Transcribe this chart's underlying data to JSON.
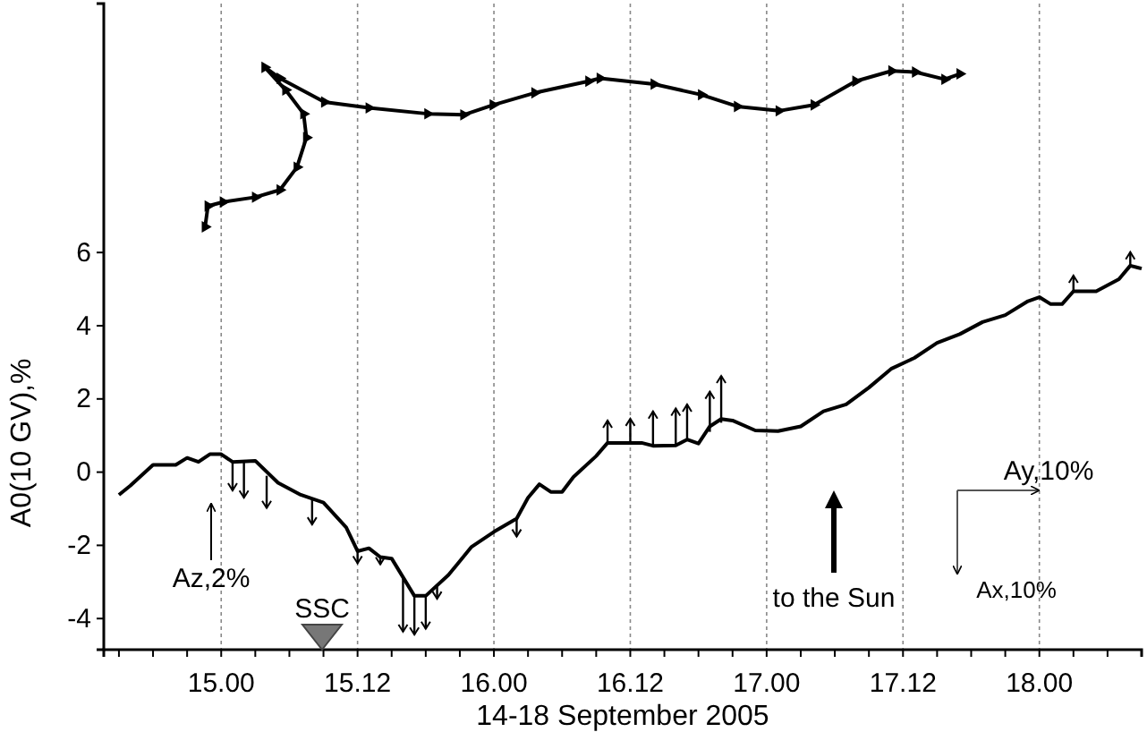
{
  "chart_data": {
    "type": "line",
    "xlabel": "14-18 September 2005",
    "ylabel": "A0(10 GV),%",
    "xlim": [
      "2005-09-14T13:40",
      "2005-09-18T09:00"
    ],
    "ylim": [
      -4.85,
      12.8
    ],
    "xticks": [
      {
        "value": "2005-09-14T15:00",
        "label": null
      },
      {
        "value": "2005-09-14T18:00",
        "label": null
      },
      {
        "value": "2005-09-14T21:00",
        "label": null
      },
      {
        "value": "2005-09-15T00:00",
        "label": "15.00"
      },
      {
        "value": "2005-09-15T03:00",
        "label": null
      },
      {
        "value": "2005-09-15T06:00",
        "label": null
      },
      {
        "value": "2005-09-15T09:00",
        "label": null
      },
      {
        "value": "2005-09-15T12:00",
        "label": "15.12"
      },
      {
        "value": "2005-09-15T15:00",
        "label": null
      },
      {
        "value": "2005-09-15T18:00",
        "label": null
      },
      {
        "value": "2005-09-15T21:00",
        "label": null
      },
      {
        "value": "2005-09-16T00:00",
        "label": "16.00"
      },
      {
        "value": "2005-09-16T03:00",
        "label": null
      },
      {
        "value": "2005-09-16T06:00",
        "label": null
      },
      {
        "value": "2005-09-16T09:00",
        "label": null
      },
      {
        "value": "2005-09-16T12:00",
        "label": "16.12"
      },
      {
        "value": "2005-09-16T15:00",
        "label": null
      },
      {
        "value": "2005-09-16T18:00",
        "label": null
      },
      {
        "value": "2005-09-16T21:00",
        "label": null
      },
      {
        "value": "2005-09-17T00:00",
        "label": "17.00"
      },
      {
        "value": "2005-09-17T03:00",
        "label": null
      },
      {
        "value": "2005-09-17T06:00",
        "label": null
      },
      {
        "value": "2005-09-17T09:00",
        "label": null
      },
      {
        "value": "2005-09-17T12:00",
        "label": "17.12"
      },
      {
        "value": "2005-09-17T15:00",
        "label": null
      },
      {
        "value": "2005-09-17T18:00",
        "label": null
      },
      {
        "value": "2005-09-17T21:00",
        "label": null
      },
      {
        "value": "2005-09-18T00:00",
        "label": "18.00"
      },
      {
        "value": "2005-09-18T03:00",
        "label": null
      },
      {
        "value": "2005-09-18T06:00",
        "label": null
      }
    ],
    "yticks": [
      -4,
      -2,
      0,
      2,
      4,
      6
    ],
    "grid": "x",
    "line_style": "solid",
    "series": [
      {
        "color": "#000000",
        "x": [
          "2005-09-14T15:00",
          "2005-09-14T16:00",
          "2005-09-14T18:00",
          "2005-09-14T20:00",
          "2005-09-14T21:00",
          "2005-09-14T22:00",
          "2005-09-14T23:00",
          "2005-09-15T00:00",
          "2005-09-15T01:00",
          "2005-09-15T03:00",
          "2005-09-15T05:00",
          "2005-09-15T07:00",
          "2005-09-15T09:00",
          "2005-09-15T11:00",
          "2005-09-15T12:00",
          "2005-09-15T13:00",
          "2005-09-15T14:00",
          "2005-09-15T15:00",
          "2005-09-15T17:00",
          "2005-09-15T18:00",
          "2005-09-15T20:00",
          "2005-09-15T22:00",
          "2005-09-16T00:00",
          "2005-09-16T02:00",
          "2005-09-16T03:00",
          "2005-09-16T04:00",
          "2005-09-16T05:00",
          "2005-09-16T06:00",
          "2005-09-16T07:00",
          "2005-09-16T09:00",
          "2005-09-16T10:00",
          "2005-09-16T13:00",
          "2005-09-16T14:00",
          "2005-09-16T16:00",
          "2005-09-16T17:00",
          "2005-09-16T18:00",
          "2005-09-16T19:00",
          "2005-09-16T20:00",
          "2005-09-16T21:00",
          "2005-09-16T23:00",
          "2005-09-17T01:00",
          "2005-09-17T03:00",
          "2005-09-17T05:00",
          "2005-09-17T07:00",
          "2005-09-17T09:00",
          "2005-09-17T11:00",
          "2005-09-17T13:00",
          "2005-09-17T15:00",
          "2005-09-17T17:00",
          "2005-09-17T19:00",
          "2005-09-17T21:00",
          "2005-09-17T23:00",
          "2005-09-18T00:00",
          "2005-09-18T01:00",
          "2005-09-18T02:00",
          "2005-09-18T03:00",
          "2005-09-18T05:00",
          "2005-09-18T07:00",
          "2005-09-18T08:00",
          "2005-09-18T09:00"
        ],
        "values": [
          -0.62,
          -0.37,
          0.2,
          0.2,
          0.39,
          0.28,
          0.49,
          0.49,
          0.28,
          0.31,
          -0.29,
          -0.62,
          -0.83,
          -1.51,
          -2.16,
          -2.08,
          -2.32,
          -2.36,
          -3.38,
          -3.38,
          -2.81,
          -2.05,
          -1.63,
          -1.27,
          -0.7,
          -0.33,
          -0.54,
          -0.54,
          -0.13,
          0.44,
          0.8,
          0.8,
          0.72,
          0.73,
          0.89,
          0.78,
          1.25,
          1.45,
          1.41,
          1.14,
          1.12,
          1.25,
          1.66,
          1.85,
          2.31,
          2.83,
          3.12,
          3.53,
          3.77,
          4.1,
          4.29,
          4.67,
          4.78,
          4.59,
          4.59,
          4.94,
          4.94,
          5.27,
          5.64,
          5.56
        ]
      },
      {
        "type": "bar",
        "color": "#000000",
        "x": [
          "2005-09-15T01:00",
          "2005-09-15T02:00",
          "2005-09-15T04:00",
          "2005-09-15T08:00",
          "2005-09-15T12:00",
          "2005-09-15T14:00",
          "2005-09-15T16:00",
          "2005-09-15T17:00",
          "2005-09-15T18:00",
          "2005-09-15T19:00",
          "2005-09-16T02:00",
          "2005-09-16T10:00",
          "2005-09-16T12:00",
          "2005-09-16T14:00",
          "2005-09-16T16:00",
          "2005-09-16T17:00",
          "2005-09-16T19:00",
          "2005-09-16T20:00",
          "2005-09-18T03:00",
          "2005-09-18T08:00"
        ],
        "base": [
          0.28,
          0.28,
          -0.1,
          -0.7,
          -2.16,
          -2.32,
          -2.85,
          -3.38,
          -3.38,
          -3.1,
          -1.27,
          0.8,
          0.8,
          0.72,
          0.75,
          0.89,
          1.1,
          1.35,
          4.9,
          5.64
        ],
        "values": [
          -0.78,
          -0.98,
          -0.88,
          -0.73,
          -0.33,
          -0.2,
          -1.51,
          -1.06,
          -0.9,
          -0.36,
          -0.49,
          0.61,
          0.66,
          0.94,
          0.99,
          0.96,
          1.1,
          1.28,
          0.47,
          0.37
        ]
      },
      {
        "color": "#000000",
        "marker": "triangle",
        "x": [
          "2005-09-14T22:35",
          "2005-09-14T22:50",
          "2005-09-15T00:10",
          "2005-09-15T03:00",
          "2005-09-15T05:10",
          "2005-09-15T06:40",
          "2005-09-15T07:30",
          "2005-09-15T07:15",
          "2005-09-15T05:40",
          "2005-09-15T03:50",
          "2005-09-15T05:10",
          "2005-09-15T09:05",
          "2005-09-15T13:00",
          "2005-09-15T18:10",
          "2005-09-15T21:20",
          "2005-09-15T23:55",
          "2005-09-16T03:35",
          "2005-09-16T08:20",
          "2005-09-16T09:20",
          "2005-09-16T14:05",
          "2005-09-16T18:15",
          "2005-09-16T21:25",
          "2005-09-17T01:05",
          "2005-09-17T04:10",
          "2005-09-17T07:50",
          "2005-09-17T11:00",
          "2005-09-17T13:05",
          "2005-09-17T15:40",
          "2005-09-17T17:00"
        ],
        "values": [
          6.7,
          7.27,
          7.38,
          7.51,
          7.71,
          8.33,
          9.14,
          9.79,
          10.44,
          11.06,
          10.76,
          10.11,
          9.95,
          9.79,
          9.76,
          10.03,
          10.36,
          10.68,
          10.76,
          10.6,
          10.31,
          9.99,
          9.87,
          10.03,
          10.68,
          10.96,
          10.93,
          10.73,
          10.88
        ]
      }
    ],
    "annotations": [
      "Az,2%",
      "SSC",
      "to the Sun",
      "Ay,10%",
      "Ax,10%"
    ]
  }
}
